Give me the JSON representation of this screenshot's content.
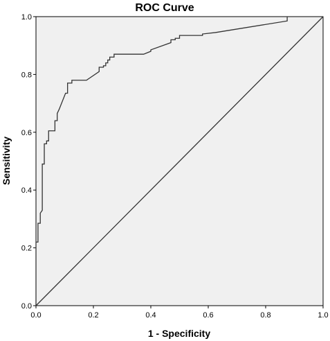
{
  "chart_data": {
    "type": "line",
    "title": "ROC Curve",
    "xlabel": "1 - Specificity",
    "ylabel": "Sensitivity",
    "xlim": [
      0.0,
      1.0
    ],
    "ylim": [
      0.0,
      1.0
    ],
    "x_ticks": [
      "0.0",
      "0.2",
      "0.4",
      "0.6",
      "0.8",
      "1.0"
    ],
    "y_ticks": [
      "0.0",
      "0.2",
      "0.4",
      "0.6",
      "0.8",
      "1.0"
    ],
    "grid": false,
    "legend": "none",
    "plot_background": "#f0f0f0",
    "series": [
      {
        "line_color": "#333333",
        "step": true,
        "points": [
          [
            0.0,
            0.0
          ],
          [
            0.0,
            0.22
          ],
          [
            0.007,
            0.22
          ],
          [
            0.007,
            0.285
          ],
          [
            0.015,
            0.285
          ],
          [
            0.015,
            0.32
          ],
          [
            0.022,
            0.33
          ],
          [
            0.022,
            0.49
          ],
          [
            0.029,
            0.49
          ],
          [
            0.029,
            0.56
          ],
          [
            0.037,
            0.56
          ],
          [
            0.037,
            0.57
          ],
          [
            0.044,
            0.57
          ],
          [
            0.044,
            0.605
          ],
          [
            0.066,
            0.605
          ],
          [
            0.066,
            0.64
          ],
          [
            0.074,
            0.64
          ],
          [
            0.074,
            0.665
          ],
          [
            0.081,
            0.68
          ],
          [
            0.103,
            0.735
          ],
          [
            0.11,
            0.735
          ],
          [
            0.11,
            0.77
          ],
          [
            0.125,
            0.77
          ],
          [
            0.125,
            0.78
          ],
          [
            0.176,
            0.78
          ],
          [
            0.22,
            0.81
          ],
          [
            0.22,
            0.825
          ],
          [
            0.235,
            0.825
          ],
          [
            0.235,
            0.83
          ],
          [
            0.243,
            0.83
          ],
          [
            0.243,
            0.84
          ],
          [
            0.25,
            0.84
          ],
          [
            0.25,
            0.85
          ],
          [
            0.257,
            0.85
          ],
          [
            0.257,
            0.86
          ],
          [
            0.272,
            0.86
          ],
          [
            0.272,
            0.87
          ],
          [
            0.375,
            0.87
          ],
          [
            0.4,
            0.88
          ],
          [
            0.4,
            0.885
          ],
          [
            0.47,
            0.91
          ],
          [
            0.47,
            0.92
          ],
          [
            0.485,
            0.92
          ],
          [
            0.485,
            0.925
          ],
          [
            0.5,
            0.925
          ],
          [
            0.5,
            0.935
          ],
          [
            0.58,
            0.935
          ],
          [
            0.58,
            0.94
          ],
          [
            0.625,
            0.945
          ],
          [
            0.875,
            0.985
          ],
          [
            0.875,
            1.0
          ],
          [
            1.0,
            1.0
          ]
        ]
      },
      {
        "line_color": "#333333",
        "step": false,
        "points": [
          [
            0.0,
            0.0
          ],
          [
            1.0,
            1.0
          ]
        ]
      }
    ]
  }
}
